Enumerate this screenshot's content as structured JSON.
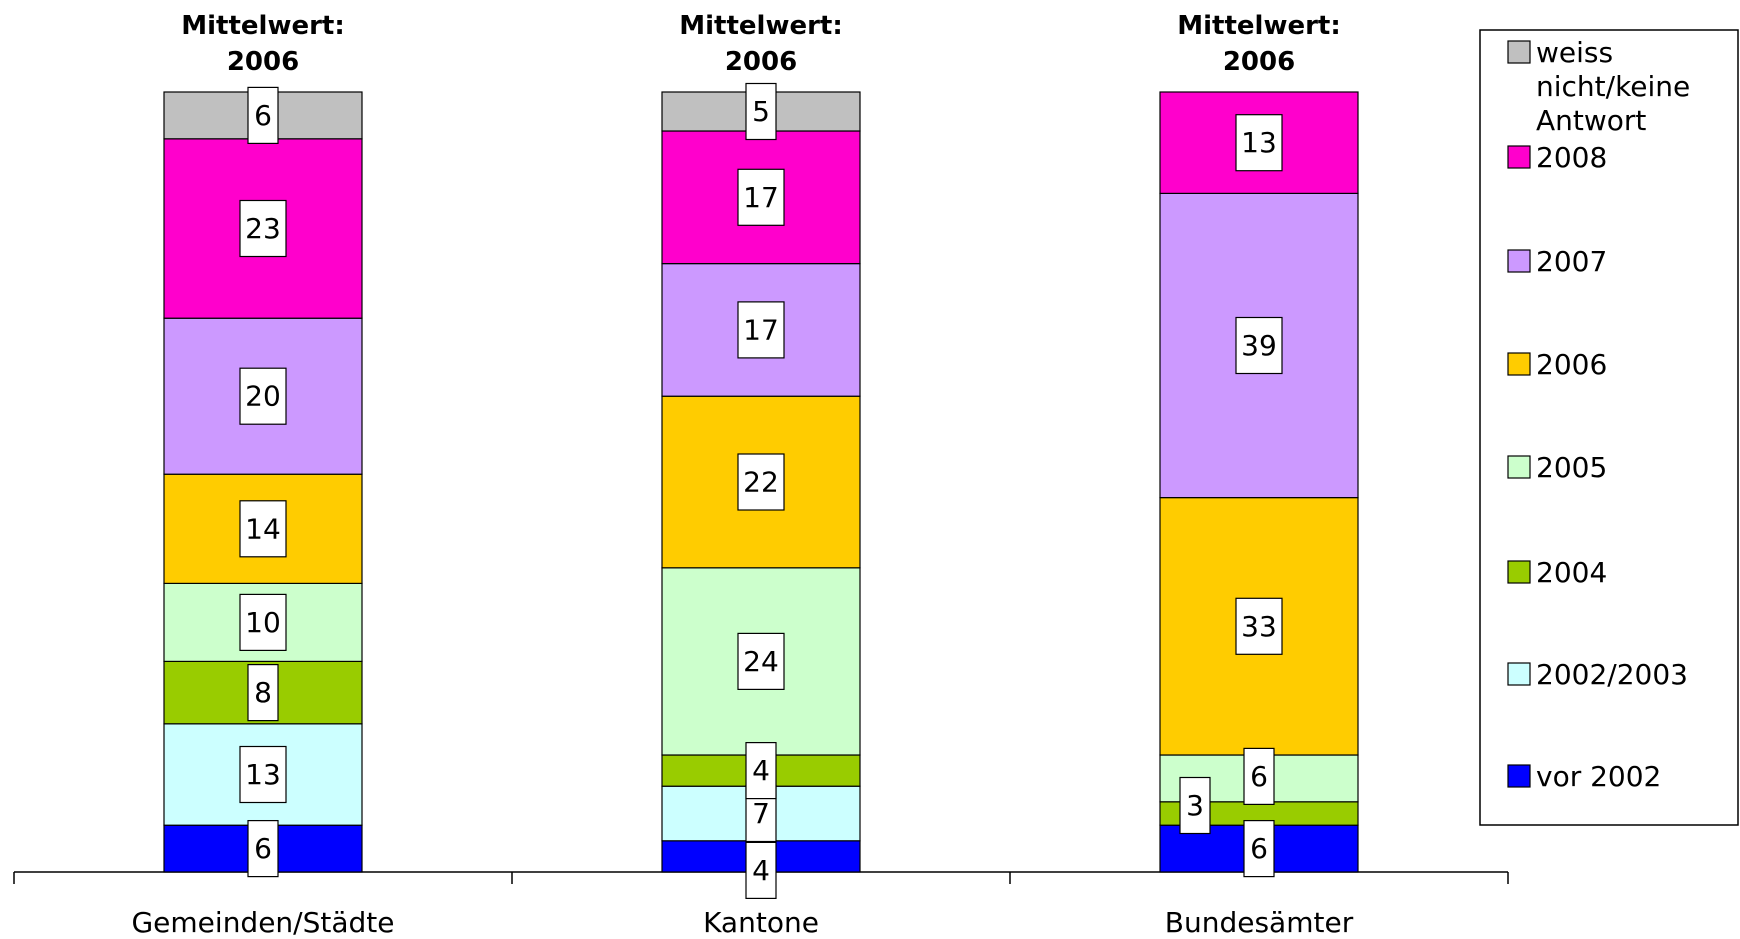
{
  "chart_data": {
    "type": "bar",
    "stacked": true,
    "categories": [
      "Gemeinden/Städte",
      "Kantone",
      "Bundesämter"
    ],
    "headers": [
      [
        "Mittelwert:",
        "2006"
      ],
      [
        "Mittelwert:",
        "2006"
      ],
      [
        "Mittelwert:",
        "2006"
      ]
    ],
    "series": [
      {
        "name": "vor 2002",
        "color": "#0000ff",
        "values": [
          6,
          4,
          6
        ]
      },
      {
        "name": "2002/2003",
        "color": "#ccffff",
        "values": [
          13,
          7,
          0
        ]
      },
      {
        "name": "2004",
        "color": "#99cc00",
        "values": [
          8,
          4,
          3
        ]
      },
      {
        "name": "2005",
        "color": "#ccffcc",
        "values": [
          10,
          24,
          6
        ]
      },
      {
        "name": "2006",
        "color": "#ffcc00",
        "values": [
          14,
          22,
          33
        ]
      },
      {
        "name": "2007",
        "color": "#cc99ff",
        "values": [
          20,
          17,
          39
        ]
      },
      {
        "name": "2008",
        "color": "#ff00cc",
        "values": [
          23,
          17,
          13
        ]
      },
      {
        "name": "weiss nicht/keine Antwort",
        "color": "#c0c0c0",
        "values": [
          6,
          5,
          0
        ]
      }
    ],
    "legend_lines": {
      "weiss nicht/keine Antwort": [
        "weiss",
        "nicht/keine",
        "Antwort"
      ]
    },
    "ylim": [
      0,
      100
    ],
    "legend_position": "right",
    "grid": false
  }
}
